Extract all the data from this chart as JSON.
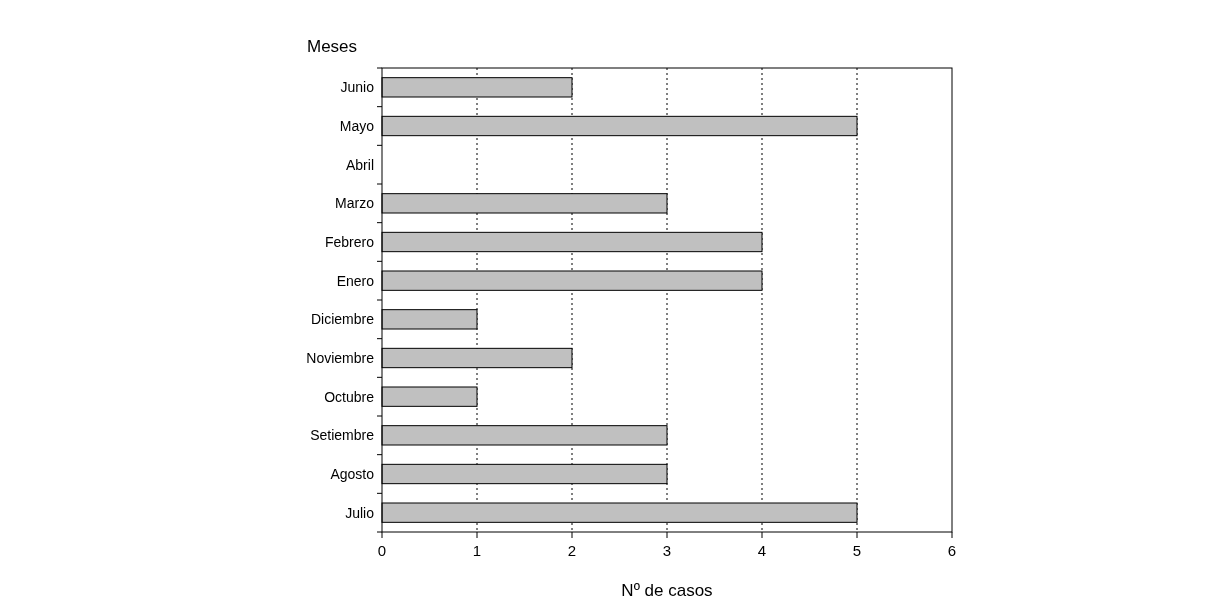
{
  "chart_data": {
    "type": "bar",
    "orientation": "horizontal",
    "ylabel": "Meses",
    "xlabel": "Nº de casos",
    "categories": [
      "Junio",
      "Mayo",
      "Abril",
      "Marzo",
      "Febrero",
      "Enero",
      "Diciembre",
      "Noviembre",
      "Octubre",
      "Setiembre",
      "Agosto",
      "Julio"
    ],
    "values": [
      2,
      5,
      0,
      3,
      4,
      4,
      1,
      2,
      1,
      3,
      3,
      5
    ],
    "color": "#c0c0c0",
    "xlim": [
      0,
      6
    ],
    "xticks": [
      0,
      1,
      2,
      3,
      4,
      5,
      6
    ],
    "grid": "x"
  }
}
